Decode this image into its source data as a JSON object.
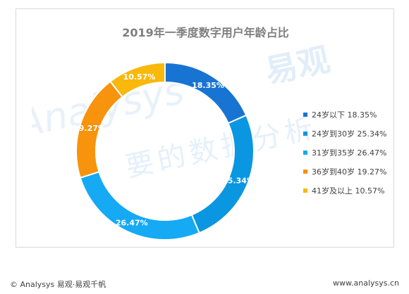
{
  "chart_data": {
    "type": "pie",
    "title": "2019年一季度数字用户年龄占比",
    "categories": [
      "24岁以下",
      "24岁到30岁",
      "31岁到35岁",
      "36岁到40岁",
      "41岁及以上"
    ],
    "values": [
      18.35,
      25.34,
      26.47,
      19.27,
      10.57
    ],
    "data_labels": [
      "18.35%",
      "25.34%",
      "26.47%",
      "19.27%",
      "10.57%"
    ],
    "legend_labels": [
      "24岁以下 18.35%",
      "24岁到30岁 25.34%",
      "31岁到35岁 26.47%",
      "36岁到40岁 19.27%",
      "41岁及以上 10.57%"
    ],
    "colors": [
      "#1874d2",
      "#0a96e0",
      "#16a9f4",
      "#f7930c",
      "#f8b80c"
    ],
    "legend_position": "right"
  },
  "watermark": {
    "english": "Analysys",
    "chinese_brand": "易观",
    "chinese_slogan": "要的数据分析"
  },
  "footer": {
    "left": "© Analysys 易观·易观千帆",
    "right": "www.analysys.cn"
  }
}
